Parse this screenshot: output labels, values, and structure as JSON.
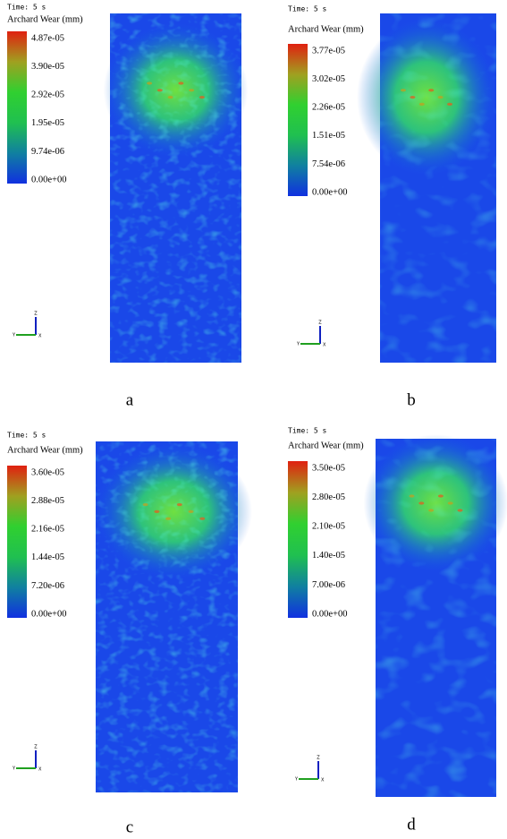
{
  "panels": [
    {
      "time": "Time: 5 s",
      "legend_title": "Archard Wear (mm)",
      "ticks": [
        "4.87e-05",
        "3.90e-05",
        "2.92e-05",
        "1.95e-05",
        "9.74e-06",
        "0.00e+00"
      ],
      "label": "a",
      "axes": [
        "Z",
        "Y",
        "X"
      ]
    },
    {
      "time": "Time: 5 s",
      "legend_title": "Archard Wear (mm)",
      "ticks": [
        "3.77e-05",
        "3.02e-05",
        "2.26e-05",
        "1.51e-05",
        "7.54e-06",
        "0.00e+00"
      ],
      "label": "b",
      "axes": [
        "Z",
        "Y",
        "X"
      ]
    },
    {
      "time": "Time: 5 s",
      "legend_title": "Archard Wear (mm)",
      "ticks": [
        "3.60e-05",
        "2.88e-05",
        "2.16e-05",
        "1.44e-05",
        "7.20e-06",
        "0.00e+00"
      ],
      "label": "c",
      "axes": [
        "Z",
        "Y",
        "X"
      ]
    },
    {
      "time": "Time: 5 s",
      "legend_title": "Archard Wear (mm)",
      "ticks": [
        "3.50e-05",
        "2.80e-05",
        "2.10e-05",
        "1.40e-05",
        "7.00e-06",
        "0.00e+00"
      ],
      "label": "d",
      "axes": [
        "Z",
        "Y",
        "X"
      ]
    }
  ]
}
